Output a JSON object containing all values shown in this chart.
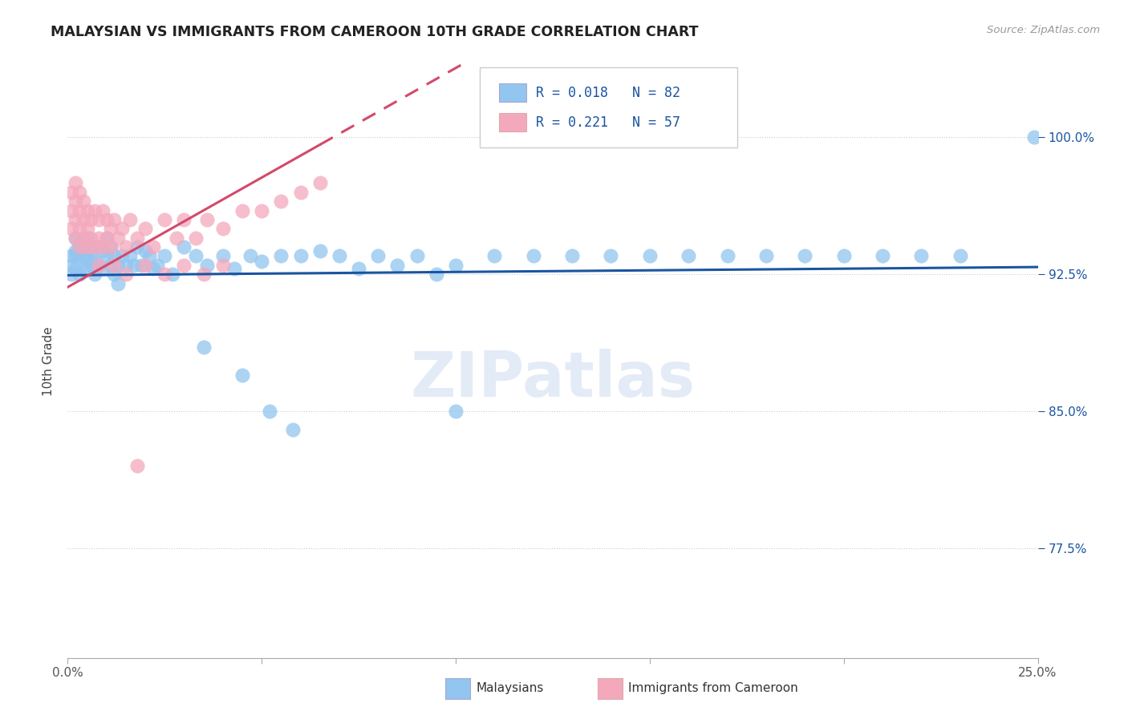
{
  "title": "MALAYSIAN VS IMMIGRANTS FROM CAMEROON 10TH GRADE CORRELATION CHART",
  "source": "Source: ZipAtlas.com",
  "ylabel": "10th Grade",
  "ytick_labels": [
    "77.5%",
    "85.0%",
    "92.5%",
    "100.0%"
  ],
  "ytick_values": [
    0.775,
    0.85,
    0.925,
    1.0
  ],
  "xlim": [
    0.0,
    0.25
  ],
  "ylim": [
    0.715,
    1.04
  ],
  "legend_r1": "R = 0.018",
  "legend_n1": "N = 82",
  "legend_r2": "R = 0.221",
  "legend_n2": "N = 57",
  "blue_color": "#92C5F0",
  "pink_color": "#F4A8BC",
  "blue_line_color": "#1A55A0",
  "pink_line_color": "#D4496A",
  "watermark_color": "#C8D8EE",
  "malaysians_x": [
    0.001,
    0.001,
    0.001,
    0.002,
    0.002,
    0.002,
    0.002,
    0.003,
    0.003,
    0.003,
    0.003,
    0.004,
    0.004,
    0.004,
    0.005,
    0.005,
    0.005,
    0.006,
    0.006,
    0.006,
    0.007,
    0.007,
    0.008,
    0.008,
    0.009,
    0.009,
    0.01,
    0.01,
    0.011,
    0.011,
    0.012,
    0.012,
    0.013,
    0.013,
    0.014,
    0.015,
    0.016,
    0.017,
    0.018,
    0.019,
    0.02,
    0.021,
    0.022,
    0.023,
    0.025,
    0.027,
    0.03,
    0.033,
    0.036,
    0.04,
    0.043,
    0.047,
    0.05,
    0.055,
    0.06,
    0.065,
    0.07,
    0.075,
    0.08,
    0.085,
    0.09,
    0.095,
    0.1,
    0.11,
    0.12,
    0.13,
    0.14,
    0.15,
    0.16,
    0.17,
    0.18,
    0.19,
    0.2,
    0.21,
    0.22,
    0.23,
    0.035,
    0.045,
    0.052,
    0.058,
    0.1,
    0.249
  ],
  "malaysians_y": [
    0.93,
    0.935,
    0.925,
    0.945,
    0.938,
    0.928,
    0.935,
    0.94,
    0.935,
    0.925,
    0.942,
    0.935,
    0.928,
    0.94,
    0.938,
    0.932,
    0.945,
    0.94,
    0.93,
    0.935,
    0.932,
    0.925,
    0.93,
    0.94,
    0.938,
    0.928,
    0.935,
    0.945,
    0.93,
    0.94,
    0.925,
    0.935,
    0.93,
    0.92,
    0.935,
    0.93,
    0.935,
    0.93,
    0.94,
    0.93,
    0.938,
    0.935,
    0.928,
    0.93,
    0.935,
    0.925,
    0.94,
    0.935,
    0.93,
    0.935,
    0.928,
    0.935,
    0.932,
    0.935,
    0.935,
    0.938,
    0.935,
    0.928,
    0.935,
    0.93,
    0.935,
    0.925,
    0.93,
    0.935,
    0.935,
    0.935,
    0.935,
    0.935,
    0.935,
    0.935,
    0.935,
    0.935,
    0.935,
    0.935,
    0.935,
    0.935,
    0.885,
    0.87,
    0.85,
    0.84,
    0.85,
    1.0
  ],
  "cameroon_x": [
    0.001,
    0.001,
    0.001,
    0.002,
    0.002,
    0.002,
    0.002,
    0.003,
    0.003,
    0.003,
    0.003,
    0.004,
    0.004,
    0.004,
    0.005,
    0.005,
    0.005,
    0.006,
    0.006,
    0.007,
    0.007,
    0.008,
    0.008,
    0.009,
    0.009,
    0.01,
    0.01,
    0.011,
    0.011,
    0.012,
    0.013,
    0.014,
    0.015,
    0.016,
    0.018,
    0.02,
    0.022,
    0.025,
    0.028,
    0.03,
    0.033,
    0.036,
    0.04,
    0.045,
    0.05,
    0.055,
    0.06,
    0.065,
    0.015,
    0.02,
    0.025,
    0.03,
    0.035,
    0.04,
    0.008,
    0.012,
    0.018
  ],
  "cameroon_y": [
    0.96,
    0.97,
    0.95,
    0.965,
    0.955,
    0.975,
    0.945,
    0.96,
    0.95,
    0.97,
    0.94,
    0.965,
    0.955,
    0.945,
    0.96,
    0.95,
    0.94,
    0.955,
    0.945,
    0.96,
    0.94,
    0.955,
    0.945,
    0.96,
    0.94,
    0.955,
    0.945,
    0.95,
    0.94,
    0.955,
    0.945,
    0.95,
    0.94,
    0.955,
    0.945,
    0.95,
    0.94,
    0.955,
    0.945,
    0.955,
    0.945,
    0.955,
    0.95,
    0.96,
    0.96,
    0.965,
    0.97,
    0.975,
    0.925,
    0.93,
    0.925,
    0.93,
    0.925,
    0.93,
    0.93,
    0.93,
    0.82
  ],
  "blue_trend_slope": 0.018,
  "blue_trend_intercept": 0.9245,
  "pink_trend_slope": 1.2,
  "pink_trend_intercept": 0.918
}
